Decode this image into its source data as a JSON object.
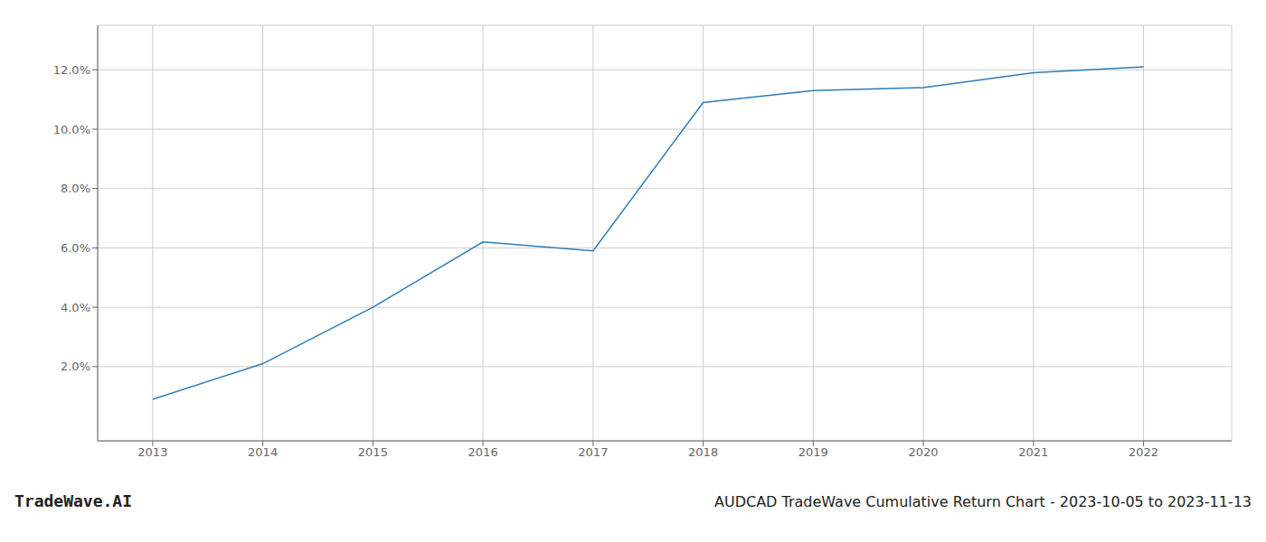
{
  "chart_data": {
    "type": "line",
    "title": "AUDCAD TradeWave Cumulative Return Chart - 2023-10-05 to 2023-11-13",
    "annotations": [
      "TradeWave.AI"
    ],
    "x": [
      2013,
      2014,
      2015,
      2016,
      2017,
      2018,
      2019,
      2020,
      2021,
      2022
    ],
    "values": [
      0.009,
      0.021,
      0.04,
      0.062,
      0.059,
      0.109,
      0.113,
      0.114,
      0.119,
      0.121
    ],
    "color": "#2e7cb8",
    "xlim": [
      2012.5,
      2022.8
    ],
    "ylim": [
      -0.005,
      0.135
    ],
    "xticks": [
      2013,
      2014,
      2015,
      2016,
      2017,
      2018,
      2019,
      2020,
      2021,
      2022
    ],
    "yticks": [
      {
        "value": 0.02,
        "label": "2.0%"
      },
      {
        "value": 0.04,
        "label": "4.0%"
      },
      {
        "value": 0.06,
        "label": "6.0%"
      },
      {
        "value": 0.08,
        "label": "8.0%"
      },
      {
        "value": 0.1,
        "label": "10.0%"
      },
      {
        "value": 0.12,
        "label": "12.0%"
      }
    ],
    "grid": true
  }
}
